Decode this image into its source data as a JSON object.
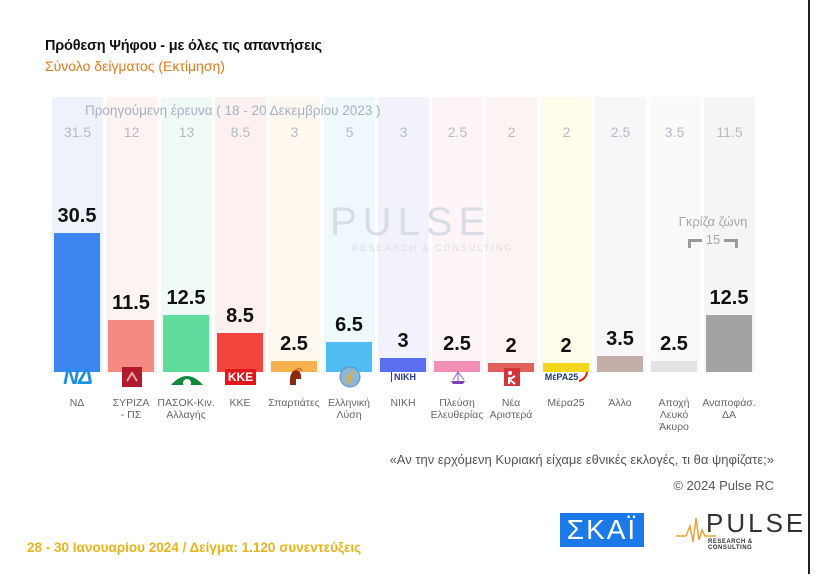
{
  "header": {
    "title": "Πρόθεση Ψήφου - με όλες τις απαντήσεις",
    "subtitle": "Σύνολο δείγματος   (Εκτίμηση)"
  },
  "previous_label": "Προηγούμενη έρευνα ( 18 - 20 Δεκεμβρίου 2023 )",
  "watermark": {
    "main": "PULSE",
    "sub": "RESEARCH & CONSULTING"
  },
  "gray_zone": {
    "label": "Γκρίζα ζώνη",
    "value": "15"
  },
  "question": "«Αν την ερχόμενη Κυριακή είχαμε εθνικές εκλογές, τι θα ψηφίζατε;»",
  "copyright": "© 2024 Pulse RC",
  "footer": {
    "date_sample": "28 - 30  Ιανουαρίου  2024  /  Δείγμα:  1.120 συνεντεύξεις",
    "skai_logo": "ΣΚΑΪ",
    "pulse_logo": "PULSE",
    "pulse_sub": "RESEARCH & CONSULTING"
  },
  "logos": {
    "nd": "ΝΔ",
    "kke": "ΚΚΕ",
    "niki": "ΝΙΚΗ",
    "mera25": "ΜέΡΑ25"
  },
  "colors": {
    "title": "#111111",
    "subtitle": "#e07b1e",
    "footer_date": "#e8b418",
    "skai": "#1c7ae8"
  },
  "chart_data": {
    "type": "bar",
    "title": "Πρόθεση Ψήφου - με όλες τις απαντήσεις",
    "subtitle": "Σύνολο δείγματος (Εκτίμηση)",
    "xlabel": "",
    "ylabel": "",
    "categories": [
      "ΝΔ",
      "ΣΥΡΙΖΑ - ΠΣ",
      "ΠΑΣΟΚ-Κιν. Αλλαγής",
      "ΚΚΕ",
      "Σπαρτιάτες",
      "Ελληνική Λύση",
      "ΝΙΚΗ",
      "Πλεύση Ελευθερίας",
      "Νέα Αριστερά",
      "Μέρα25",
      "Άλλο",
      "Αποχή Λευκό Άκυρο",
      "Αναποφάσ. ΔΑ"
    ],
    "series": [
      {
        "name": "28 - 30 Ιανουαρίου 2024",
        "values": [
          30.5,
          11.5,
          12.5,
          8.5,
          2.5,
          6.5,
          3,
          2.5,
          2,
          2,
          3.5,
          2.5,
          12.5
        ]
      },
      {
        "name": "Προηγούμενη έρευνα ( 18 - 20 Δεκεμβρίου 2023 )",
        "values": [
          31.5,
          12,
          13,
          8.5,
          3,
          5,
          3,
          2.5,
          2,
          2,
          2.5,
          3.5,
          11.5
        ]
      }
    ],
    "annotations": [
      "Γκρίζα ζώνη 15"
    ],
    "grid": false,
    "legend": "none"
  },
  "columns": [
    {
      "label": "ΝΔ",
      "label2": "",
      "label3": "",
      "value": "30.5",
      "prev": "31.5",
      "bar_color": "#3d86f2",
      "bg": "#eef3fb"
    },
    {
      "label": "ΣΥΡΙΖΑ",
      "label2": "- ΠΣ",
      "label3": "",
      "value": "11.5",
      "prev": "12",
      "bar_color": "#f58a82",
      "bg": "#fdf3f2"
    },
    {
      "label": "ΠΑΣΟΚ-Κιν.",
      "label2": "Αλλαγής",
      "label3": "",
      "value": "12.5",
      "prev": "13",
      "bar_color": "#5fdc9c",
      "bg": "#f1fbf6"
    },
    {
      "label": "ΚΚΕ",
      "label2": "",
      "label3": "",
      "value": "8.5",
      "prev": "8.5",
      "bar_color": "#f2453e",
      "bg": "#fdf1f0"
    },
    {
      "label": "Σπαρτιάτες",
      "label2": "",
      "label3": "",
      "value": "2.5",
      "prev": "3",
      "bar_color": "#f6b24e",
      "bg": "#fef8ef"
    },
    {
      "label": "Ελληνική",
      "label2": "Λύση",
      "label3": "",
      "value": "6.5",
      "prev": "5",
      "bar_color": "#4fbdf3",
      "bg": "#eef8fd"
    },
    {
      "label": "ΝΙΚΗ",
      "label2": "",
      "label3": "",
      "value": "3",
      "prev": "3",
      "bar_color": "#5a6ef0",
      "bg": "#f1f2fc"
    },
    {
      "label": "Πλεύση",
      "label2": "Ελευθερίας",
      "label3": "",
      "value": "2.5",
      "prev": "2.5",
      "bar_color": "#f28fb6",
      "bg": "#fdf4f8"
    },
    {
      "label": "Νέα",
      "label2": "Αριστερά",
      "label3": "",
      "value": "2",
      "prev": "2",
      "bar_color": "#e0605b",
      "bg": "#fcf3f3"
    },
    {
      "label": "Μέρα25",
      "label2": "",
      "label3": "",
      "value": "2",
      "prev": "2",
      "bar_color": "#f4d61c",
      "bg": "#fffce9"
    },
    {
      "label": "Άλλο",
      "label2": "",
      "label3": "",
      "value": "3.5",
      "prev": "2.5",
      "bar_color": "#c4aea8",
      "bg": "#f8f6f8"
    },
    {
      "label": "Αποχή",
      "label2": "Λευκό",
      "label3": "Άκυρο",
      "value": "2.5",
      "prev": "3.5",
      "bar_color": "#e3e3e3",
      "bg": "#fafafa"
    },
    {
      "label": "Αναποφάσ.",
      "label2": "ΔΑ",
      "label3": "",
      "value": "12.5",
      "prev": "11.5",
      "bar_color": "#a3a3a3",
      "bg": "#f5f5f5"
    }
  ]
}
